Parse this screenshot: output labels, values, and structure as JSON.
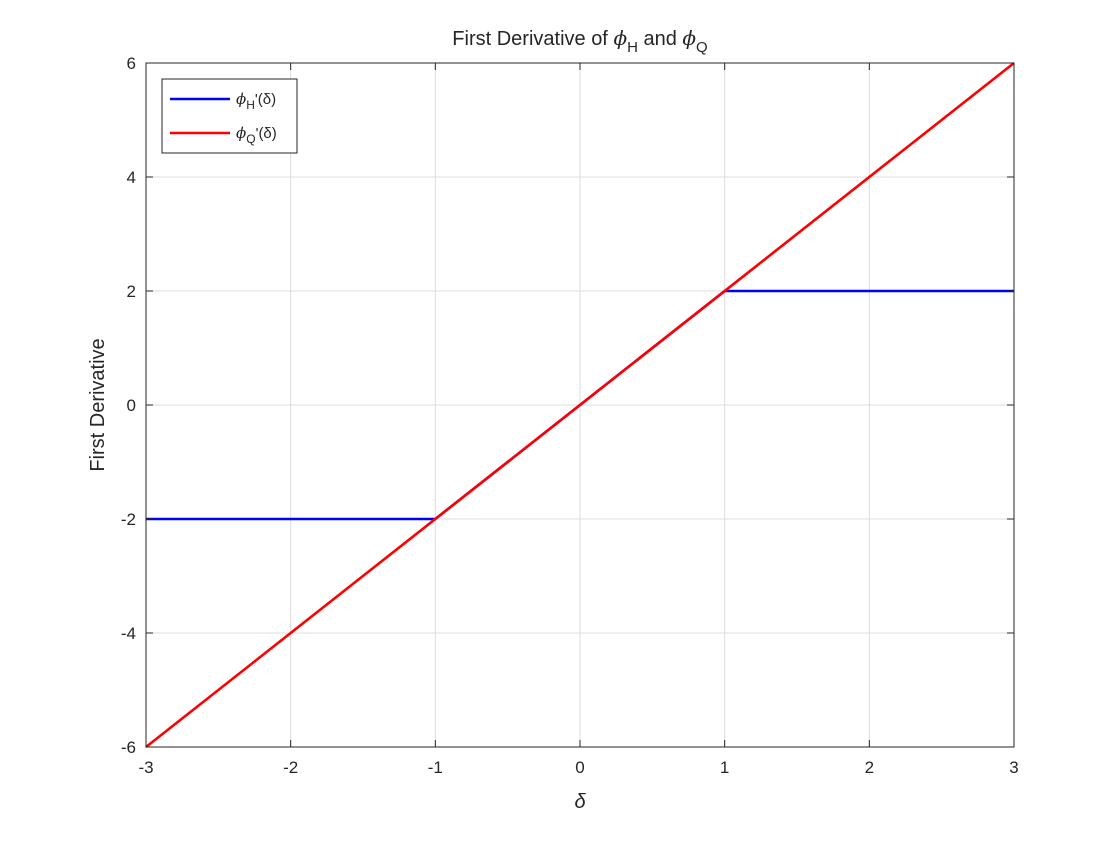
{
  "chart_data": {
    "type": "line",
    "title": "First Derivative of ϕH and ϕQ",
    "title_parts": {
      "pre": "First Derivative of ",
      "sym1": "ϕ",
      "sub1": "H",
      "mid": " and ",
      "sym2": "ϕ",
      "sub2": "Q"
    },
    "xlabel": "δ",
    "ylabel": "First Derivative",
    "xlim": [
      -3,
      3
    ],
    "ylim": [
      -6,
      6
    ],
    "xticks": [
      -3,
      -2,
      -1,
      0,
      1,
      2,
      3
    ],
    "yticks": [
      -6,
      -4,
      -2,
      0,
      2,
      4,
      6
    ],
    "xtick_labels": [
      "-3",
      "-2",
      "-1",
      "0",
      "1",
      "2",
      "3"
    ],
    "ytick_labels": [
      "-6",
      "-4",
      "-2",
      "0",
      "2",
      "4",
      "6"
    ],
    "grid": true,
    "legend_position": "top-left",
    "series": [
      {
        "name": "ϕH'(δ)",
        "legend": {
          "sym": "ϕ",
          "sub": "H",
          "tail": "'(δ)"
        },
        "color": "#0000ff",
        "x": [
          -3,
          -1,
          1,
          3
        ],
        "y": [
          -2,
          -2,
          2,
          2
        ]
      },
      {
        "name": "ϕQ'(δ)",
        "legend": {
          "sym": "ϕ",
          "sub": "Q",
          "tail": "'(δ)"
        },
        "color": "#ff0000",
        "x": [
          -3,
          3
        ],
        "y": [
          -6,
          6
        ]
      }
    ]
  }
}
